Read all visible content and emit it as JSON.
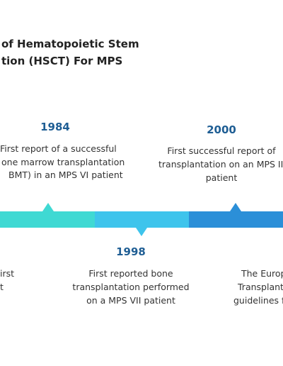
{
  "header": {
    "title": [
      "of Hematopoietic Stem",
      "tion (HSCT) For MPS"
    ]
  },
  "events": [
    {
      "year": "1984",
      "lines": [
        "First report of a successful",
        "one marrow transplantation",
        "BMT) in an MPS VI patient"
      ]
    },
    {
      "year": "2000",
      "lines": [
        "First successful report of",
        "transplantation on an MPS II",
        "patient"
      ]
    },
    {
      "year": "1998",
      "lines": [
        "First reported bone",
        "transplantation performed",
        "on a MPS VII patient"
      ]
    },
    {
      "lines": [
        "irst",
        "t"
      ]
    },
    {
      "lines": [
        "The Europ",
        "Transplant",
        "guidelines f"
      ]
    }
  ]
}
